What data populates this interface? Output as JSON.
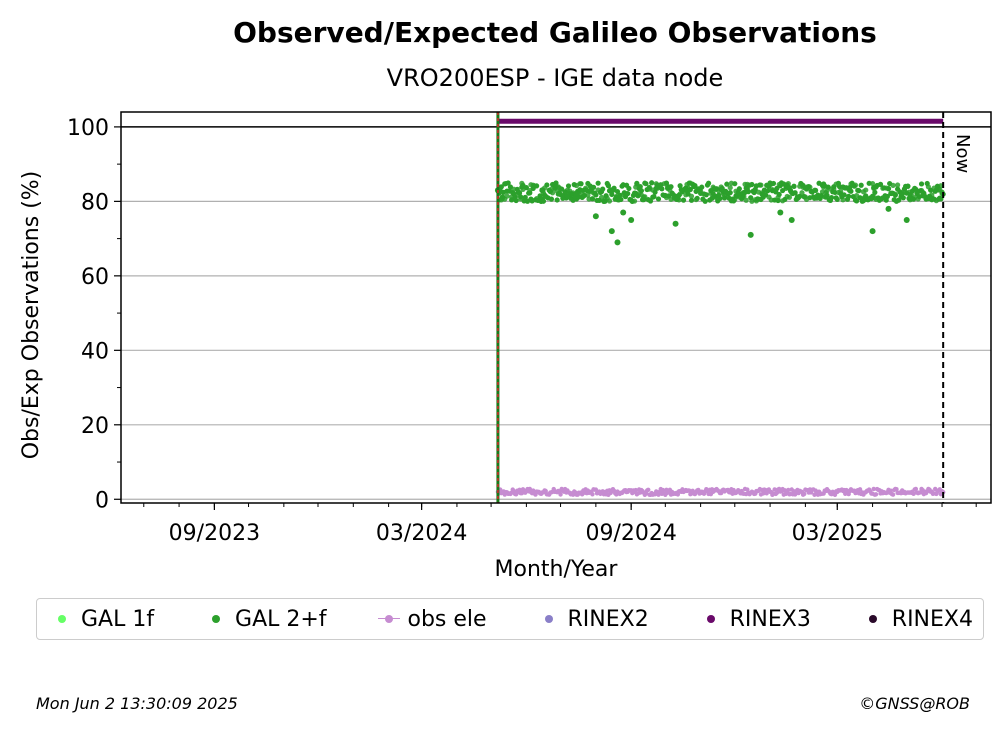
{
  "chart_data": {
    "type": "scatter",
    "title": "Observed/Expected Galileo Observations",
    "subtitle": "VRO200ESP - IGE data node",
    "xlabel": "Month/Year",
    "ylabel": "Obs/Exp Observations (%)",
    "ylim": [
      -1,
      104
    ],
    "xlim": [
      "2023-06-11",
      "2025-07-14"
    ],
    "x_ticks": [
      "09/2023",
      "03/2024",
      "09/2024",
      "03/2025"
    ],
    "y_ticks": [
      "0",
      "20",
      "40",
      "60",
      "80",
      "100"
    ],
    "grid": "horizontal",
    "legend_position": "bottom",
    "markers": {
      "data_start": "2024-05-07",
      "now": "2025-06-02",
      "now_label": "Now"
    },
    "series": [
      {
        "name": "GAL 1f",
        "color": "#66ff66",
        "style": "dot"
      },
      {
        "name": "GAL 2+f",
        "color": "#2ca02c",
        "style": "dot",
        "x": [
          "2024-05-07",
          "2024-06-15",
          "2024-07-15",
          "2024-08-01",
          "2024-08-15",
          "2024-08-20",
          "2024-08-25",
          "2024-09-01",
          "2024-10-10",
          "2024-12-15",
          "2025-01-10",
          "2025-01-20",
          "2025-04-01",
          "2025-04-15",
          "2025-05-01"
        ],
        "values": [
          83,
          83,
          82,
          76,
          72,
          69,
          77,
          75,
          74,
          71,
          77,
          75,
          72,
          78,
          75
        ],
        "typical_band": [
          80,
          85
        ]
      },
      {
        "name": "obs ele",
        "color": "#c68cd1",
        "style": "line-dot",
        "typical_value": 2
      },
      {
        "name": "RINEX2",
        "color": "#8a7fc8",
        "style": "dot"
      },
      {
        "name": "RINEX3",
        "color": "#6a0a6a",
        "style": "dot",
        "typical_value": 101.5
      },
      {
        "name": "RINEX4",
        "color": "#2a0a2a",
        "style": "dot"
      }
    ]
  },
  "footer": {
    "timestamp": "Mon Jun  2 13:30:09 2025",
    "credit": "©GNSS@ROB"
  }
}
